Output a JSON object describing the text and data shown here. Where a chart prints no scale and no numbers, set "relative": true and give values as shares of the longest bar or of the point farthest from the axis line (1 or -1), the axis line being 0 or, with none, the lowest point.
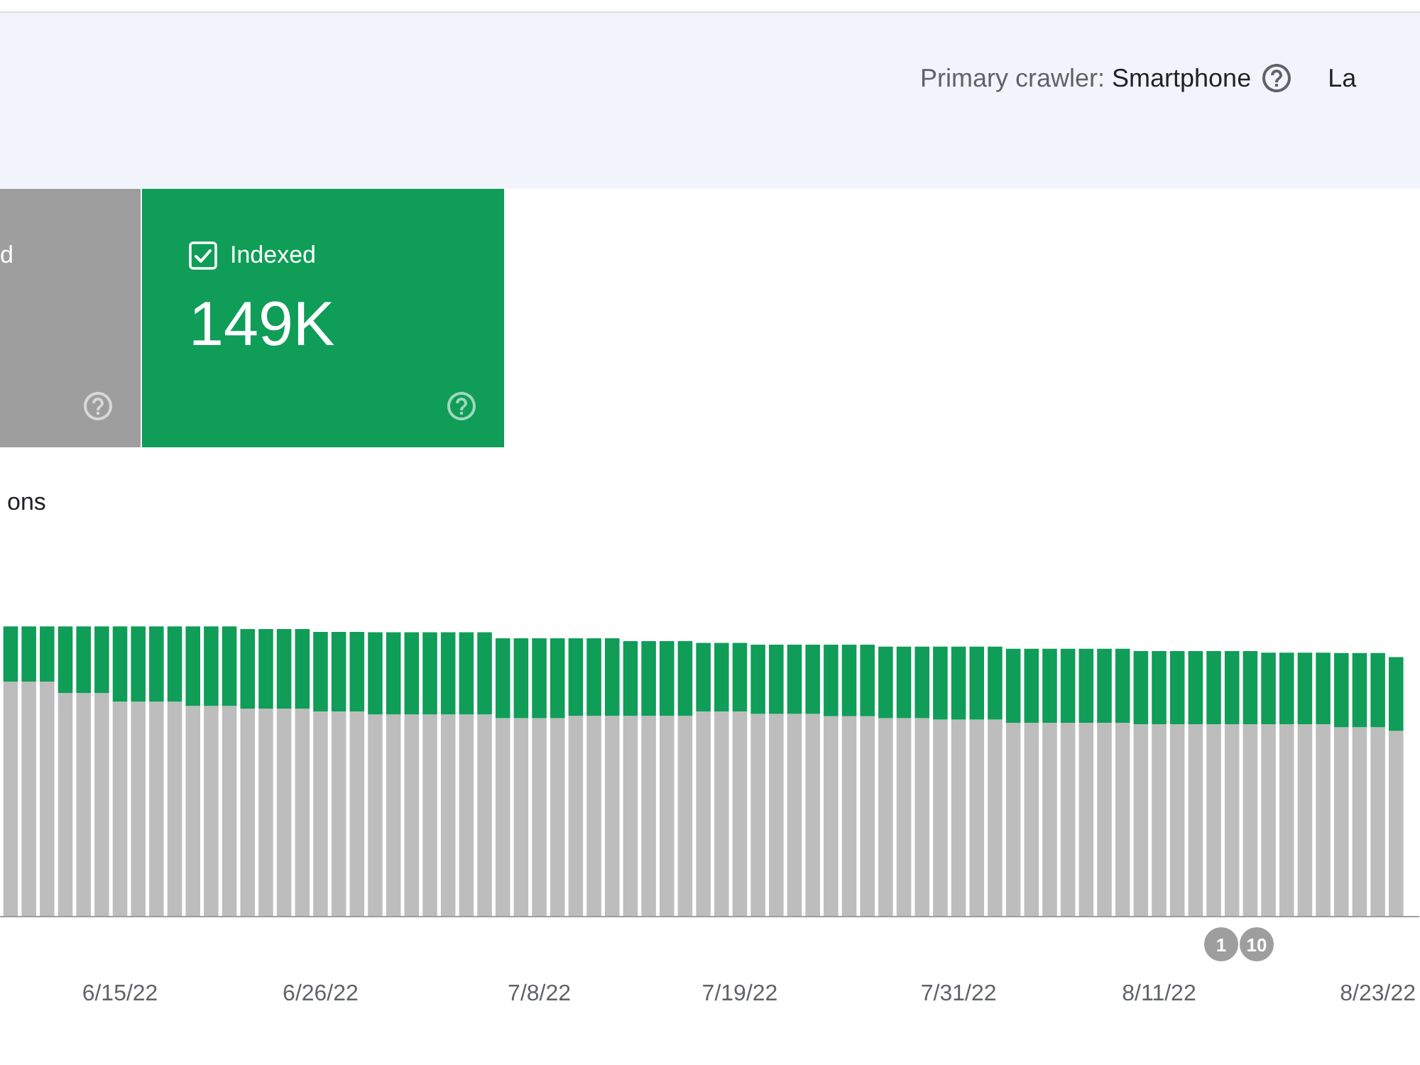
{
  "chart_data": [
    {
      "type": "other",
      "annotations": [
        "Primary crawler:",
        "Smartphone",
        "La"
      ]
    },
    {
      "type": "other",
      "title": "d",
      "color": "#9e9e9e"
    },
    {
      "type": "other",
      "title": "Indexed",
      "subtitle": "149K",
      "color": "#0f9d58"
    },
    {
      "type": "bar",
      "title": "ons",
      "stacked": true,
      "relative": true,
      "x": [
        "--06-09",
        "--06-10",
        "--06-11",
        "--06-12",
        "--06-13",
        "--06-14",
        "--06-15",
        "--06-16",
        "--06-17",
        "--06-18",
        "--06-19",
        "--06-20",
        "--06-21",
        "--06-22",
        "--06-23",
        "--06-24",
        "--06-25",
        "--06-26",
        "--06-27",
        "--06-28",
        "--06-29",
        "--06-30",
        "--07-01",
        "--07-02",
        "--07-03",
        "--07-04",
        "--07-05",
        "--07-06",
        "--07-07",
        "--07-08",
        "--07-09",
        "--07-10",
        "--07-11",
        "--07-12",
        "--07-13",
        "--07-14",
        "--07-15",
        "--07-16",
        "--07-17",
        "--07-18",
        "--07-19",
        "--07-20",
        "--07-21",
        "--07-22",
        "--07-23",
        "--07-24",
        "--07-25",
        "--07-26",
        "--07-27",
        "--07-28",
        "--07-29",
        "--07-30",
        "--07-31",
        "--08-01",
        "--08-02",
        "--08-03",
        "--08-04",
        "--08-05",
        "--08-06",
        "--08-07",
        "--08-08",
        "--08-09",
        "--08-10",
        "--08-11",
        "--08-12",
        "--08-13",
        "--08-14",
        "--08-15",
        "--08-16",
        "--08-17",
        "--08-18",
        "--08-19",
        "--08-20",
        "--08-21",
        "--08-22",
        "--08-23",
        "--08-24"
      ],
      "xlim": [
        "--06-08T10:00",
        "--08-25T06:00"
      ],
      "xticks": [
        {
          "value": "--06-15",
          "label": "6/15/22"
        },
        {
          "value": "--06-26",
          "label": "6/26/22"
        },
        {
          "value": "--07-08",
          "label": "7/8/22"
        },
        {
          "value": "--07-19",
          "label": "7/19/22"
        },
        {
          "value": "--07-31",
          "label": "7/31/22"
        },
        {
          "value": "--08-11",
          "label": "8/11/22"
        },
        {
          "value": "--08-23",
          "label": "8/23/22"
        }
      ],
      "series": [
        {
          "color": "#bdbdbd",
          "values": [
            0.809,
            0.809,
            0.809,
            0.77,
            0.77,
            0.77,
            0.74,
            0.74,
            0.74,
            0.74,
            0.725,
            0.725,
            0.725,
            0.716,
            0.716,
            0.716,
            0.716,
            0.706,
            0.706,
            0.706,
            0.696,
            0.696,
            0.696,
            0.696,
            0.696,
            0.696,
            0.696,
            0.683,
            0.683,
            0.683,
            0.683,
            0.691,
            0.691,
            0.691,
            0.691,
            0.691,
            0.691,
            0.691,
            0.706,
            0.706,
            0.706,
            0.698,
            0.698,
            0.698,
            0.698,
            0.69,
            0.69,
            0.69,
            0.683,
            0.683,
            0.683,
            0.678,
            0.678,
            0.678,
            0.678,
            0.667,
            0.667,
            0.667,
            0.667,
            0.667,
            0.667,
            0.667,
            0.662,
            0.662,
            0.662,
            0.662,
            0.662,
            0.662,
            0.662,
            0.662,
            0.662,
            0.662,
            0.662,
            0.652,
            0.652,
            0.652,
            0.639
          ]
        },
        {
          "color": "#0f9d58",
          "values": [
            0.191,
            0.191,
            0.191,
            0.23,
            0.23,
            0.23,
            0.26,
            0.26,
            0.26,
            0.26,
            0.275,
            0.275,
            0.275,
            0.275,
            0.275,
            0.275,
            0.275,
            0.275,
            0.275,
            0.275,
            0.284,
            0.284,
            0.284,
            0.284,
            0.284,
            0.284,
            0.284,
            0.276,
            0.276,
            0.276,
            0.276,
            0.268,
            0.268,
            0.268,
            0.258,
            0.258,
            0.258,
            0.258,
            0.237,
            0.237,
            0.237,
            0.239,
            0.239,
            0.239,
            0.239,
            0.247,
            0.247,
            0.247,
            0.247,
            0.247,
            0.247,
            0.252,
            0.252,
            0.252,
            0.252,
            0.256,
            0.256,
            0.256,
            0.256,
            0.256,
            0.256,
            0.256,
            0.253,
            0.253,
            0.253,
            0.253,
            0.253,
            0.253,
            0.253,
            0.247,
            0.247,
            0.247,
            0.247,
            0.256,
            0.256,
            0.256,
            0.255
          ]
        }
      ],
      "annotations": [
        "1",
        "10"
      ]
    }
  ]
}
